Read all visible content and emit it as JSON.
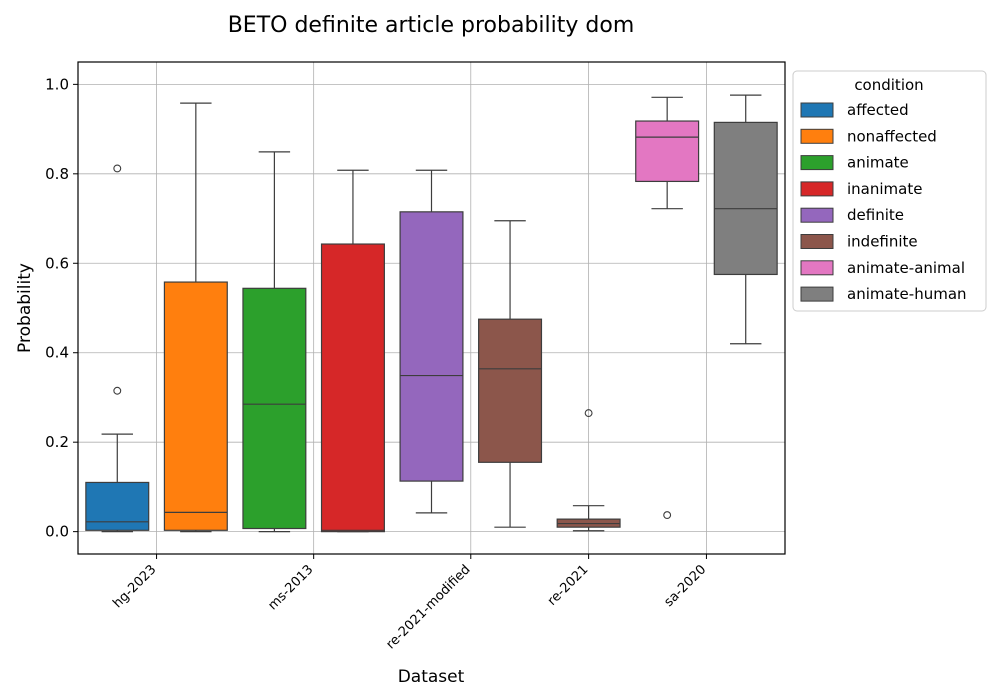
{
  "chart_data": {
    "type": "box",
    "title": "BETO definite article probability dom",
    "xlabel": "Dataset",
    "ylabel": "Probability",
    "ylim": [
      -0.05,
      1.05
    ],
    "yticks": [
      "0.0",
      "0.2",
      "0.4",
      "0.6",
      "0.8",
      "1.0"
    ],
    "ytick_values": [
      0.0,
      0.2,
      0.4,
      0.6,
      0.8,
      1.0
    ],
    "grid": true,
    "legend_title": "condition",
    "legend_position": "outside-right",
    "categories": [
      "hg-2023",
      "ms-2013",
      "re-2021-modified",
      "re-2021",
      "sa-2020"
    ],
    "series": [
      {
        "name": "affected",
        "color": "#1f77b4",
        "boxes": [
          {
            "dataset": "hg-2023",
            "slot": 0,
            "whisker_low": 0.0,
            "q1": 0.003,
            "median": 0.022,
            "q3": 0.11,
            "whisker_high": 0.218,
            "outliers": [
              0.315,
              0.812
            ]
          }
        ]
      },
      {
        "name": "nonaffected",
        "color": "#ff7f0e",
        "boxes": [
          {
            "dataset": "hg-2023",
            "slot": 1,
            "whisker_low": 0.0,
            "q1": 0.003,
            "median": 0.043,
            "q3": 0.558,
            "whisker_high": 0.958,
            "outliers": []
          }
        ]
      },
      {
        "name": "animate",
        "color": "#2ca02c",
        "boxes": [
          {
            "dataset": "ms-2013",
            "slot": 2,
            "whisker_low": 0.0,
            "q1": 0.007,
            "median": 0.285,
            "q3": 0.544,
            "whisker_high": 0.849,
            "outliers": []
          }
        ]
      },
      {
        "name": "inanimate",
        "color": "#d62728",
        "boxes": [
          {
            "dataset": "ms-2013",
            "slot": 3,
            "whisker_low": 0.0,
            "q1": 0.0,
            "median": 0.003,
            "q3": 0.643,
            "whisker_high": 0.808,
            "outliers": []
          }
        ]
      },
      {
        "name": "definite",
        "color": "#9467bd",
        "boxes": [
          {
            "dataset": "re-2021-modified",
            "slot": 4,
            "whisker_low": 0.042,
            "q1": 0.113,
            "median": 0.349,
            "q3": 0.715,
            "whisker_high": 0.808,
            "outliers": []
          }
        ]
      },
      {
        "name": "indefinite",
        "color": "#8c564b",
        "boxes": [
          {
            "dataset": "re-2021-modified",
            "slot": 5,
            "whisker_low": 0.01,
            "q1": 0.155,
            "median": 0.364,
            "q3": 0.475,
            "whisker_high": 0.695,
            "outliers": []
          },
          {
            "dataset": "re-2021",
            "slot": 6,
            "whisker_low": 0.002,
            "q1": 0.01,
            "median": 0.018,
            "q3": 0.028,
            "whisker_high": 0.058,
            "outliers": [
              0.265
            ]
          }
        ]
      },
      {
        "name": "animate-animal",
        "color": "#e377c2",
        "boxes": [
          {
            "dataset": "sa-2020",
            "slot": 7,
            "whisker_low": 0.722,
            "q1": 0.783,
            "median": 0.882,
            "q3": 0.918,
            "whisker_high": 0.971,
            "outliers": [
              0.037
            ]
          }
        ]
      },
      {
        "name": "animate-human",
        "color": "#7f7f7f",
        "boxes": [
          {
            "dataset": "sa-2020",
            "slot": 8,
            "whisker_low": 0.42,
            "q1": 0.575,
            "median": 0.722,
            "q3": 0.915,
            "whisker_high": 0.976,
            "outliers": []
          }
        ]
      }
    ]
  }
}
